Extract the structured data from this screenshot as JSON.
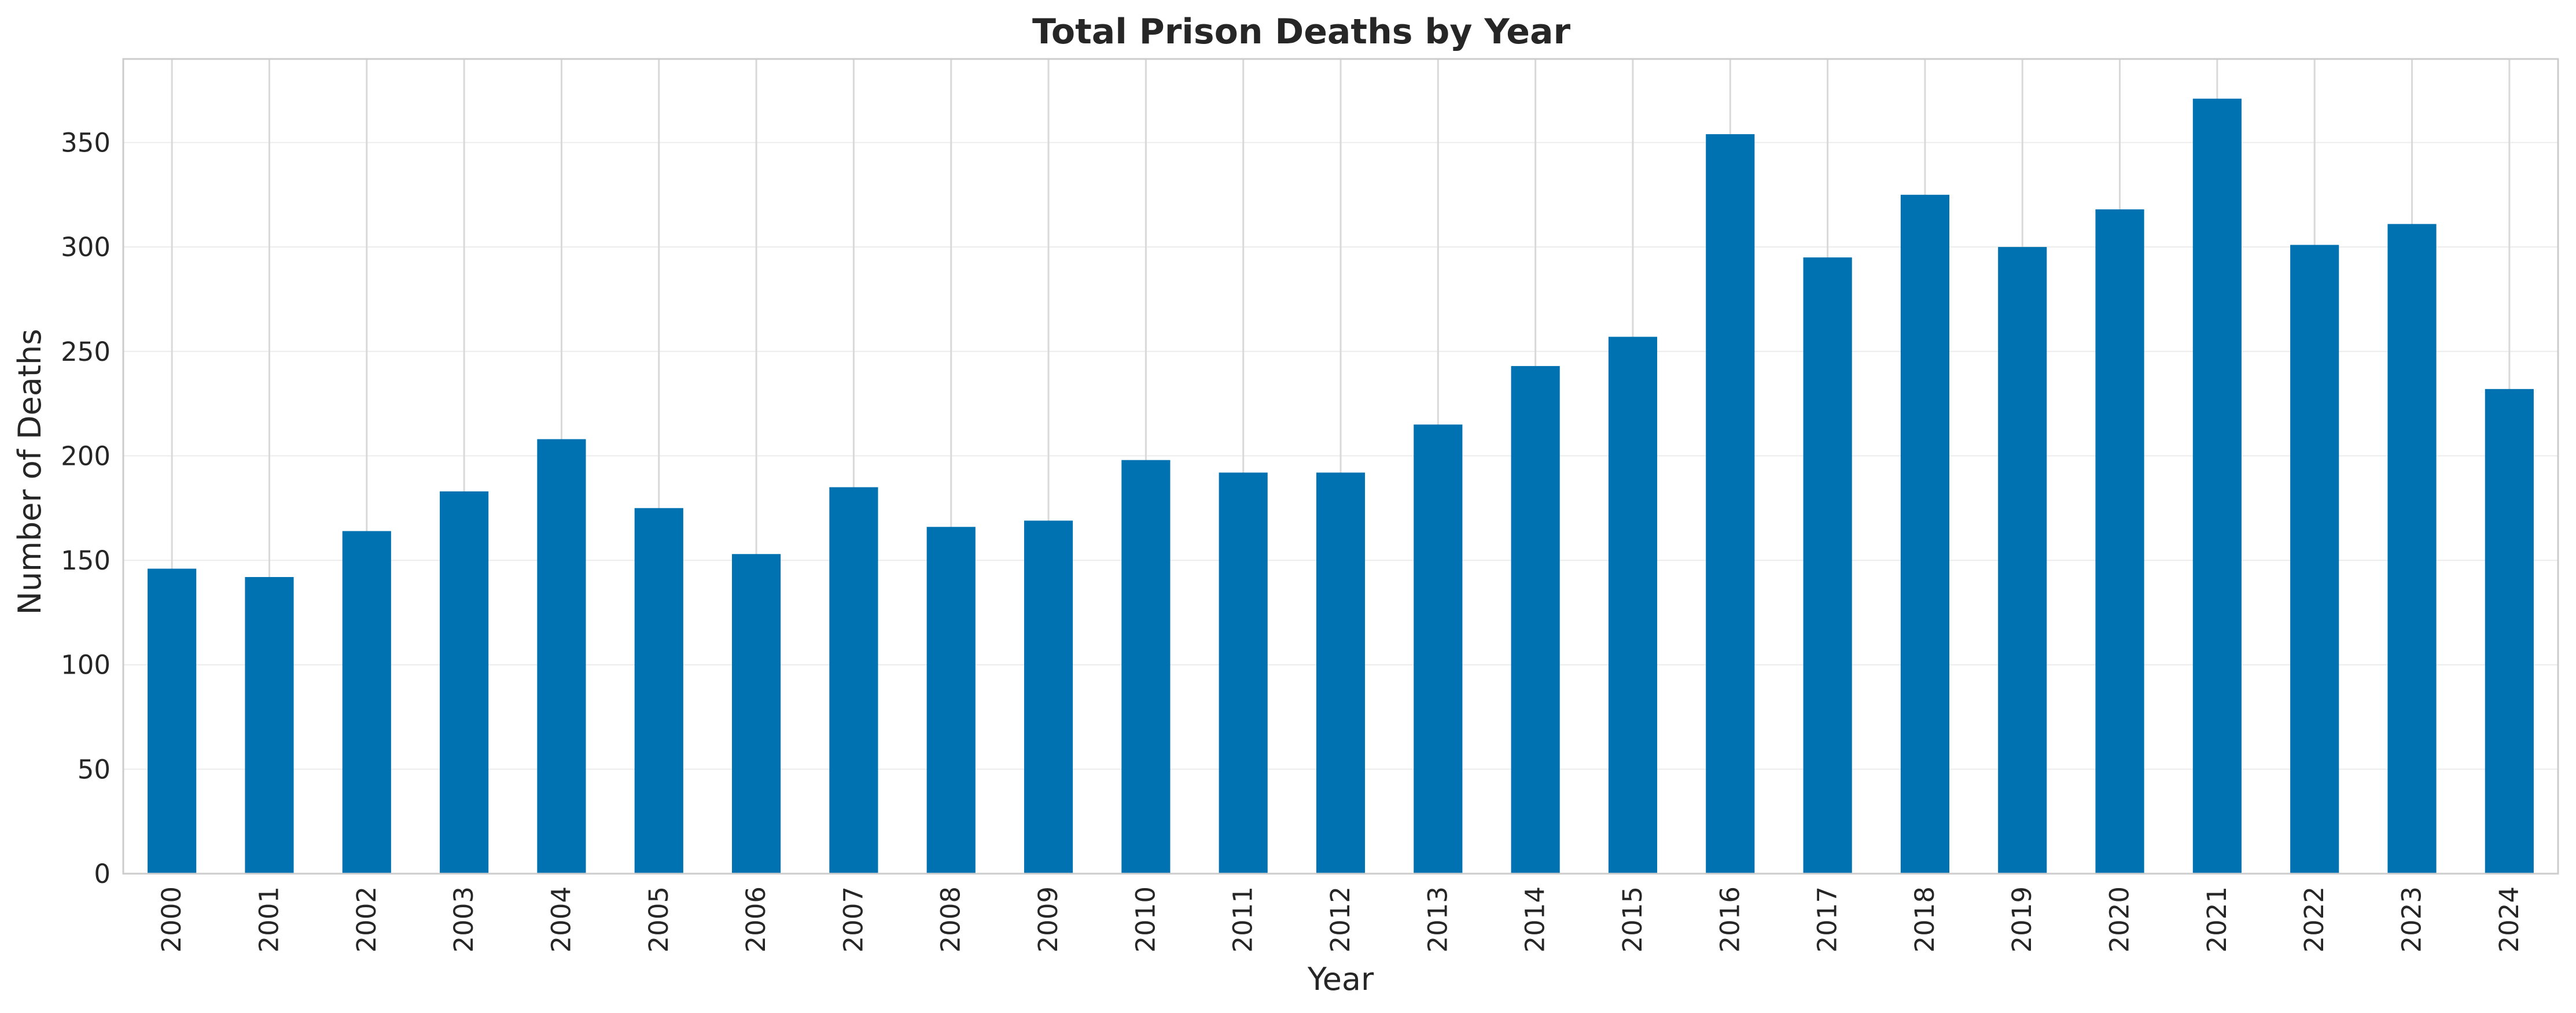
{
  "chart_data": {
    "type": "bar",
    "title": "Total Prison Deaths by Year",
    "xlabel": "Year",
    "ylabel": "Number of Deaths",
    "categories": [
      "2000",
      "2001",
      "2002",
      "2003",
      "2004",
      "2005",
      "2006",
      "2007",
      "2008",
      "2009",
      "2010",
      "2011",
      "2012",
      "2013",
      "2014",
      "2015",
      "2016",
      "2017",
      "2018",
      "2019",
      "2020",
      "2021",
      "2022",
      "2023",
      "2024"
    ],
    "values": [
      146,
      142,
      164,
      183,
      208,
      175,
      153,
      185,
      166,
      169,
      198,
      192,
      192,
      215,
      243,
      257,
      354,
      295,
      325,
      300,
      318,
      371,
      301,
      311,
      232
    ],
    "ylim": [
      0,
      390
    ],
    "yticks": [
      0,
      50,
      100,
      150,
      200,
      250,
      300,
      350
    ],
    "x_tick_rotation": "vertical",
    "grid": "on",
    "bar_color": "#0072B2",
    "grid_color": "#d9d9d9"
  }
}
